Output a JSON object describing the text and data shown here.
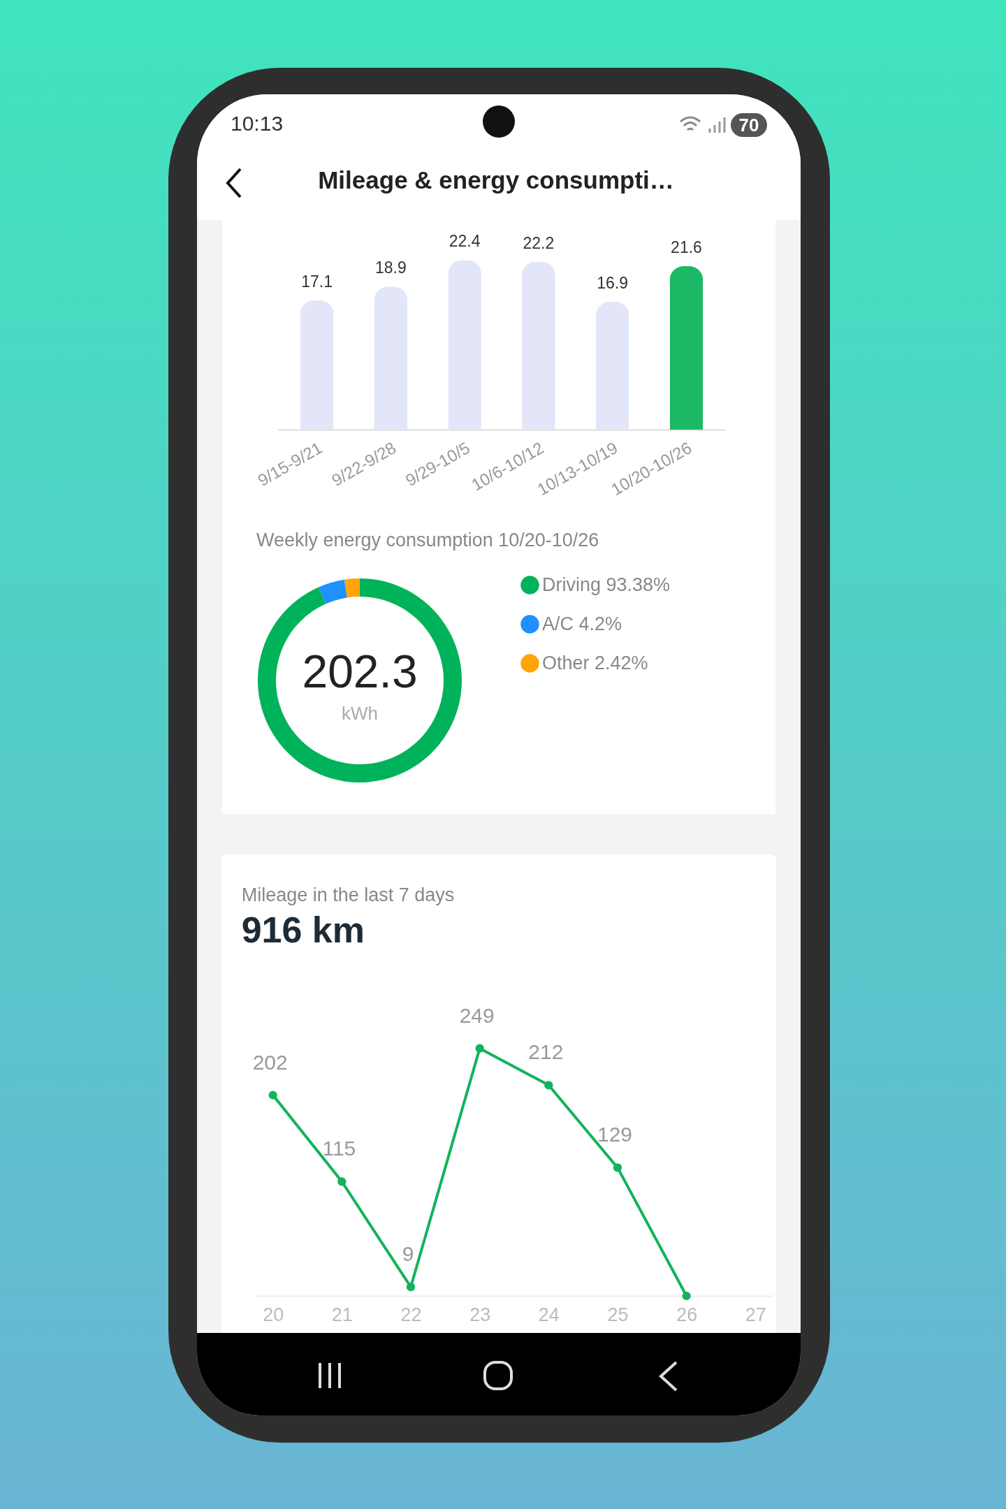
{
  "chart_data": [
    {
      "type": "bar",
      "title": "Mileage & energy consumpti…",
      "annotations": [
        "10:13",
        "70"
      ],
      "categories": [
        "9/15-9/21",
        "9/22-9/28",
        "9/29-10/5",
        "10/6-10/12",
        "10/13-10/19",
        "10/20-10/26"
      ],
      "values": [
        17.1,
        18.9,
        22.4,
        22.2,
        16.9,
        21.6
      ],
      "colors": [
        "#e3e6f8",
        "#e3e6f8",
        "#e3e6f8",
        "#e3e6f8",
        "#e3e6f8",
        "#1db865"
      ],
      "data_labels": true,
      "tick_labels": "x"
    },
    {
      "type": "donut",
      "title": "Weekly energy consumption 10/20-10/26",
      "annotations": [
        "202.3",
        "kWh"
      ],
      "categories": [
        "Driving",
        "A/C",
        "Other"
      ],
      "values": [
        93.38,
        4.2,
        2.42
      ],
      "value_labels": [
        "93.38%",
        "4.2%",
        "2.42%"
      ],
      "colors": [
        "#00b259",
        "#1e90ff",
        "#ffa50a"
      ],
      "legend": "right"
    },
    {
      "type": "line",
      "title": "Mileage in the last 7 days",
      "subtitle": "916 km",
      "categories": [
        "20",
        "21",
        "22",
        "23",
        "24",
        "25",
        "26",
        "27"
      ],
      "series": [
        {
          "color": "#12b35c",
          "values": [
            202,
            115,
            9,
            249,
            212,
            129,
            0,
            null
          ],
          "value_labels": [
            "202",
            "115",
            "9",
            "249",
            "212",
            "129",
            null,
            null
          ]
        }
      ],
      "marker": "circle",
      "tick_labels": "x"
    }
  ]
}
